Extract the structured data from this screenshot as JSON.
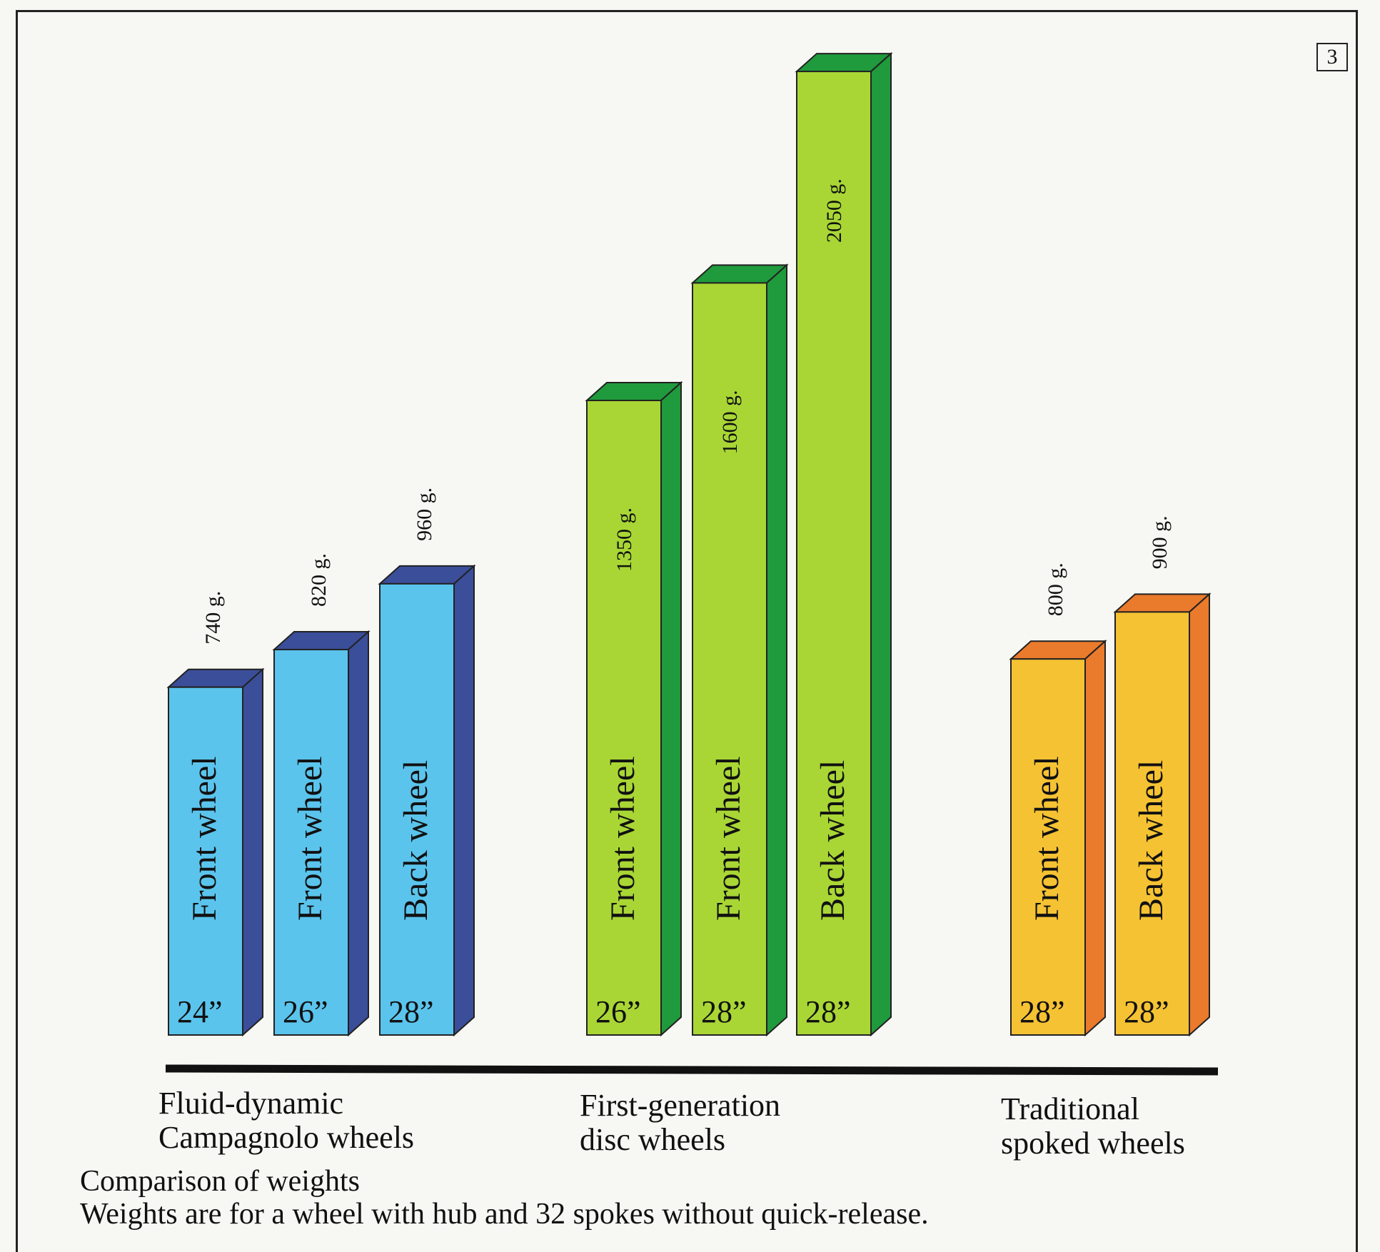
{
  "figure_number": "3",
  "caption": {
    "title": "Comparison of weights",
    "note": "Weights are for a wheel with hub and 32 spokes without quick-release."
  },
  "colors": {
    "fluid_front": "#5bc4ec",
    "fluid_side": "#3a4e9a",
    "disc_front": "#a9d635",
    "disc_side": "#1f9a3c",
    "spoked_front": "#f5c233",
    "spoked_side": "#ea7a2c"
  },
  "chart_data": {
    "type": "bar",
    "title": "Comparison of weights",
    "xlabel": "",
    "ylabel": "",
    "unit": "g.",
    "groups": [
      {
        "name": "Fluid-dynamic Campagnolo wheels",
        "label_lines": [
          "Fluid-dynamic",
          "Campagnolo wheels"
        ],
        "color_key": "fluid",
        "bars": [
          {
            "label": "Front wheel",
            "size": "24”",
            "value": 740,
            "value_label": "740 g."
          },
          {
            "label": "Front wheel",
            "size": "26”",
            "value": 820,
            "value_label": "820 g."
          },
          {
            "label": "Back wheel",
            "size": "28”",
            "value": 960,
            "value_label": "960 g."
          }
        ]
      },
      {
        "name": "First-generation disc wheels",
        "label_lines": [
          "First-generation",
          "disc wheels"
        ],
        "color_key": "disc",
        "bars": [
          {
            "label": "Front wheel",
            "size": "26”",
            "value": 1350,
            "value_label": "1350 g."
          },
          {
            "label": "Front wheel",
            "size": "28”",
            "value": 1600,
            "value_label": "1600 g."
          },
          {
            "label": "Back wheel",
            "size": "28”",
            "value": 2050,
            "value_label": "2050 g."
          }
        ]
      },
      {
        "name": "Traditional spoked wheels",
        "label_lines": [
          "Traditional",
          "spoked wheels"
        ],
        "color_key": "spoked",
        "bars": [
          {
            "label": "Front wheel",
            "size": "28”",
            "value": 800,
            "value_label": "800 g."
          },
          {
            "label": "Back wheel",
            "size": "28”",
            "value": 900,
            "value_label": "900 g."
          }
        ]
      }
    ]
  }
}
